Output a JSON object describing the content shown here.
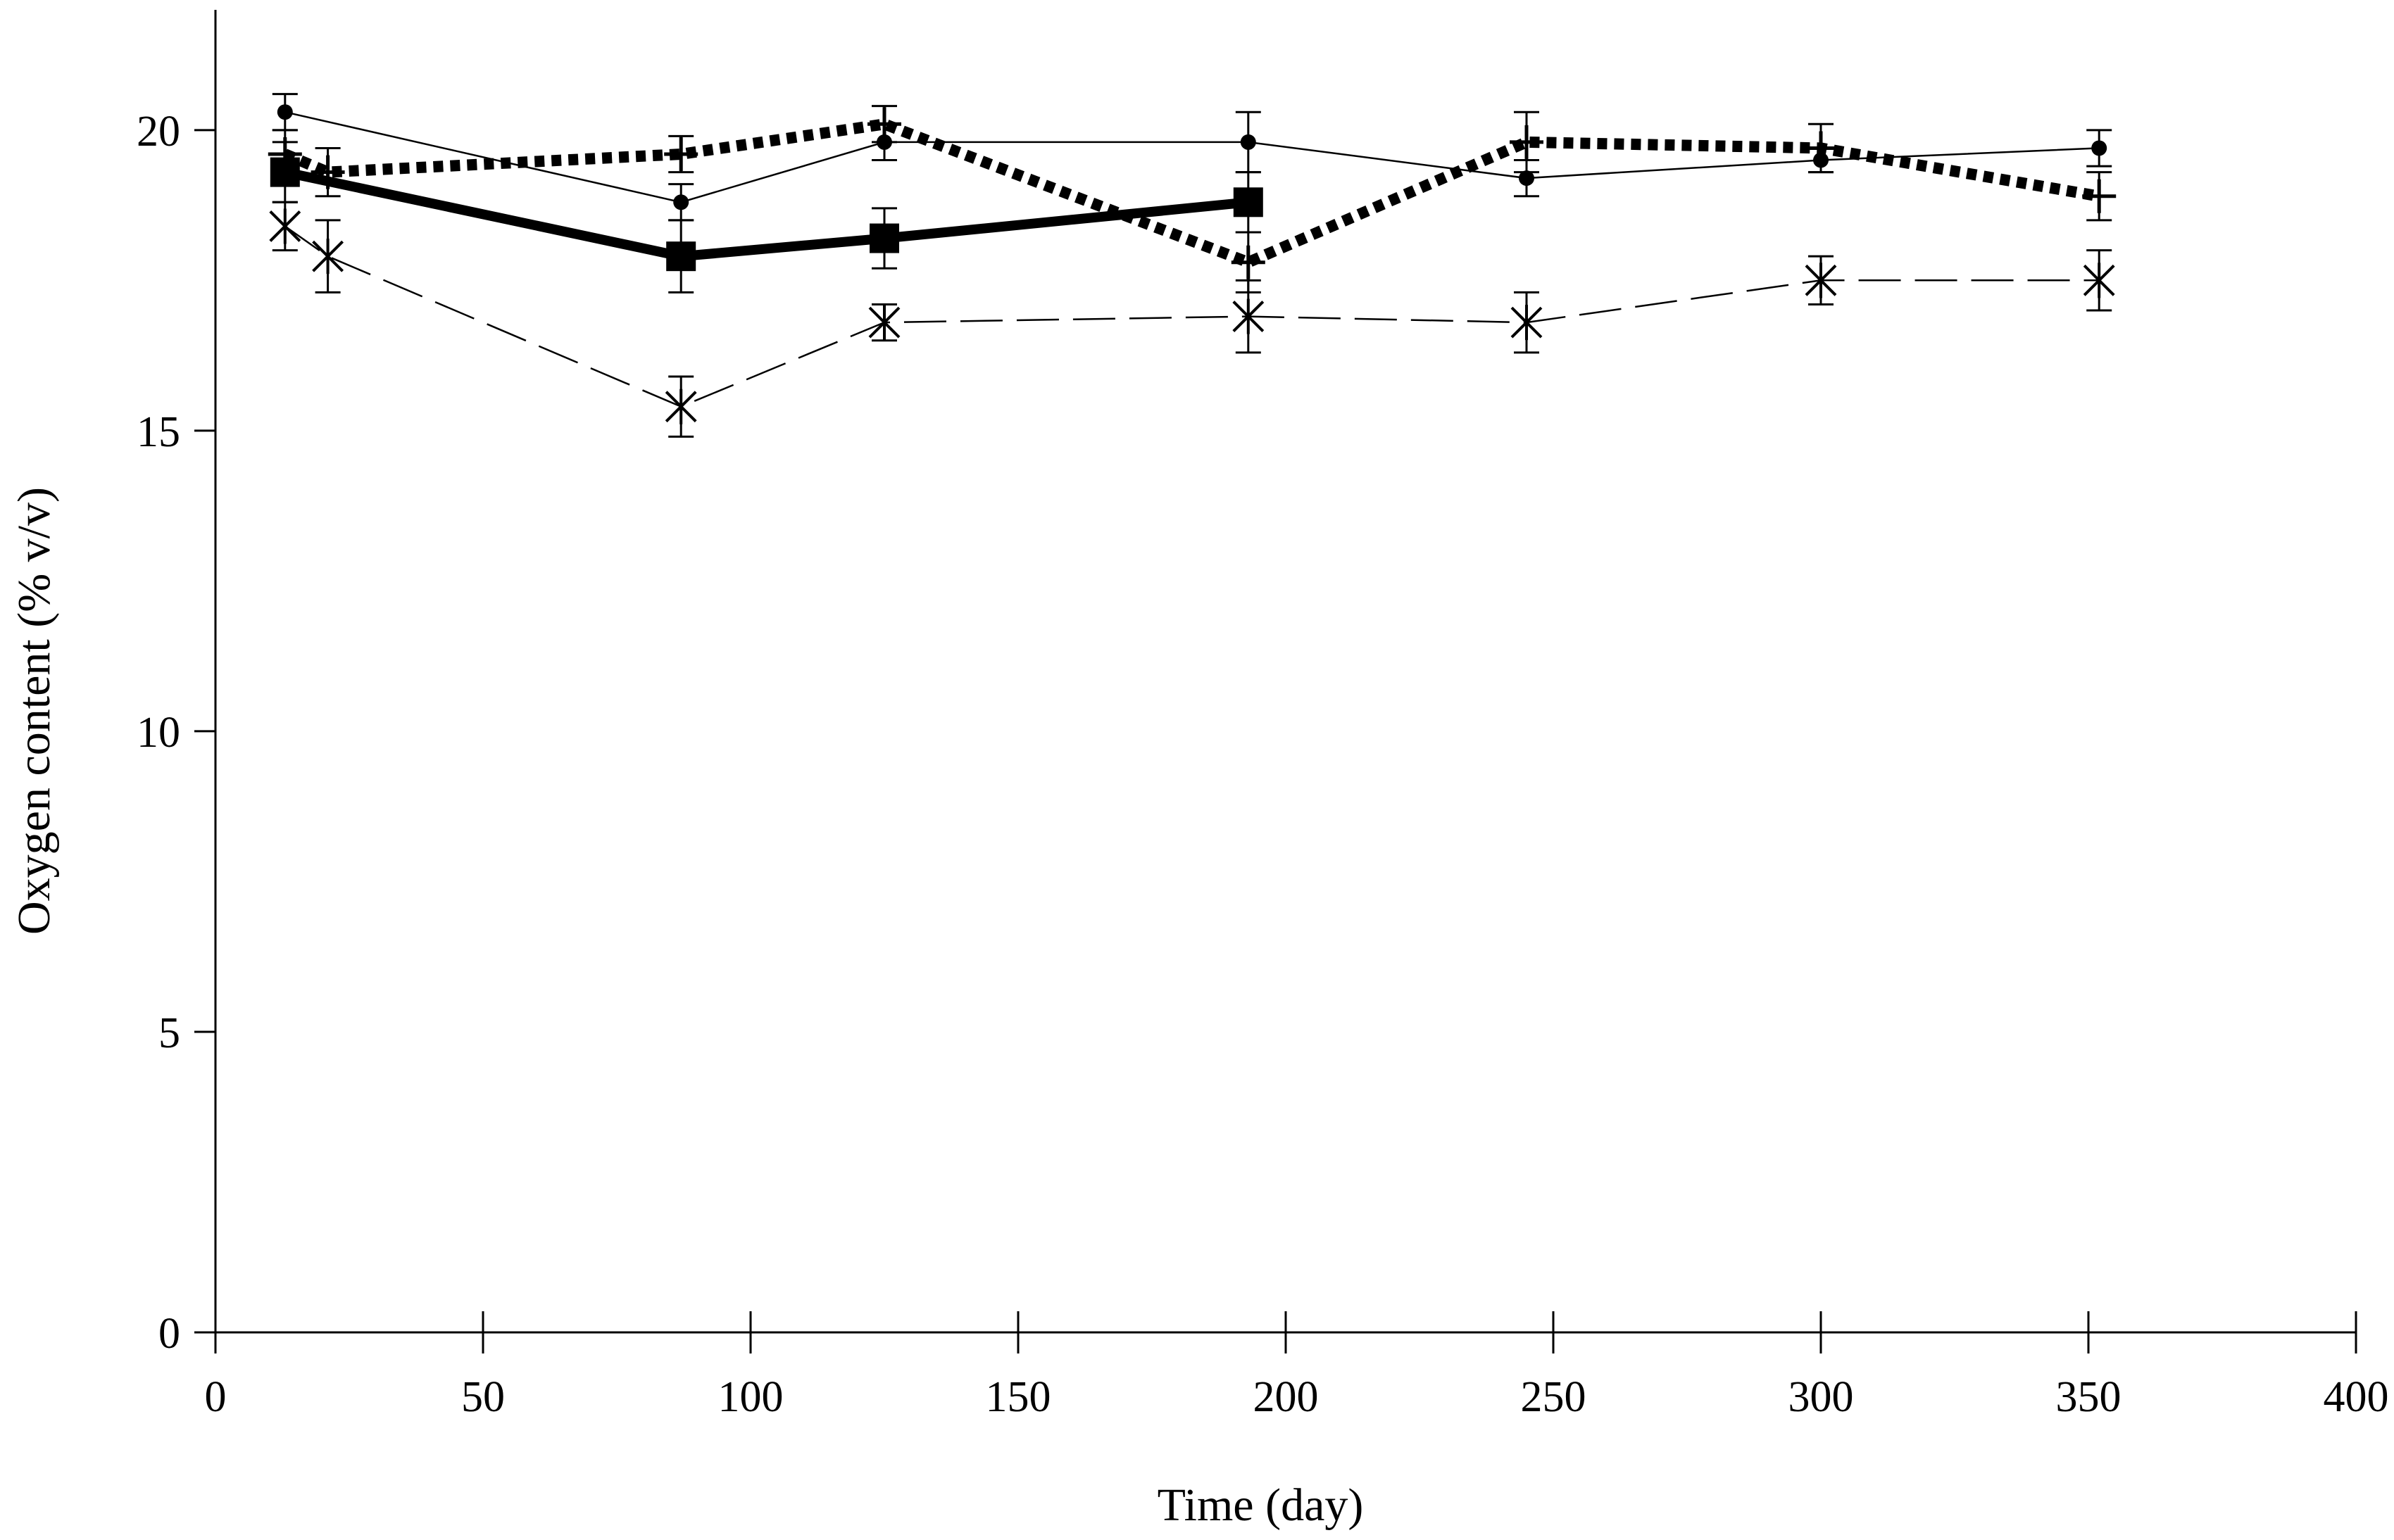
{
  "chart_data": {
    "type": "line",
    "title": "",
    "xlabel": "Time (day)",
    "ylabel": "Oxygen content  (% v/v)",
    "xlim": [
      0,
      400
    ],
    "ylim": [
      0,
      22
    ],
    "xticks": [
      0,
      50,
      100,
      150,
      200,
      250,
      300,
      350,
      400
    ],
    "yticks": [
      0,
      5,
      10,
      15,
      20
    ],
    "xtick_labels": [
      "0",
      "50",
      "100",
      "150",
      "200",
      "250",
      "300",
      "350",
      "400"
    ],
    "ytick_labels": [
      "0",
      "5",
      "10",
      "15",
      "20"
    ],
    "grid": false,
    "legend": "none",
    "series": [
      {
        "name": "circle-thin-solid",
        "marker": "circle",
        "line": "thin-solid",
        "x": [
          13,
          87,
          125,
          193,
          245,
          300,
          352
        ],
        "y": [
          20.3,
          18.8,
          19.8,
          19.8,
          19.2,
          19.5,
          19.7
        ],
        "err": [
          0.3,
          0.3,
          0.3,
          0.5,
          0.3,
          0.2,
          0.3
        ]
      },
      {
        "name": "plus-thick-dotted",
        "marker": "plus",
        "line": "thick-dotted",
        "x": [
          13,
          21,
          87,
          125,
          193,
          245,
          300,
          352
        ],
        "y": [
          19.6,
          19.3,
          19.6,
          20.1,
          17.8,
          19.8,
          19.7,
          18.9
        ],
        "err": [
          0.4,
          0.4,
          0.3,
          0.3,
          0.5,
          0.5,
          0.4,
          0.4
        ]
      },
      {
        "name": "square-thick-solid",
        "marker": "square",
        "line": "thick-solid",
        "x": [
          13,
          87,
          125,
          193
        ],
        "y": [
          19.3,
          17.9,
          18.2,
          18.8
        ],
        "err": [
          0.5,
          0.6,
          0.5,
          0.5
        ]
      },
      {
        "name": "asterisk-dashed",
        "marker": "asterisk",
        "line": "thin-dashed",
        "x": [
          13,
          21,
          87,
          125,
          193,
          245,
          300,
          352
        ],
        "y": [
          18.4,
          17.9,
          15.4,
          16.8,
          16.9,
          16.8,
          17.5,
          17.5
        ],
        "err": [
          0.4,
          0.6,
          0.5,
          0.3,
          0.6,
          0.5,
          0.4,
          0.5
        ]
      }
    ]
  }
}
